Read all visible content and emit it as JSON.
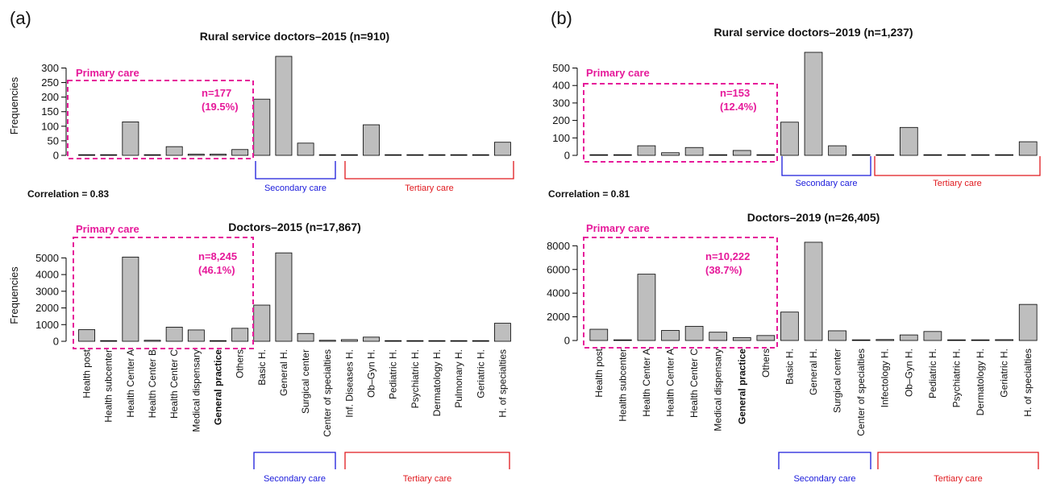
{
  "panels": {
    "a": {
      "label": "(a)",
      "correlation": "Correlation = 0.83"
    },
    "b": {
      "label": "(b)",
      "correlation": "Correlation = 0.81"
    }
  },
  "colors": {
    "bar": "#bebebe",
    "primary": "#e6199a",
    "secondary": "#1a1adb",
    "tertiary": "#e0191e"
  },
  "chart_data": [
    {
      "type": "bar",
      "panel": "a",
      "title": "Rural service doctors–2015 (n=910)",
      "ylabel": "Frequencies",
      "categories": [
        "Health post",
        "Health subcenter",
        "Health Center A",
        "Health Center B",
        "Health Center C",
        "Medical dispensary",
        "General practice",
        "Others",
        "Basic H.",
        "General H.",
        "Surgical center",
        "Center of specialties",
        "Inf. Diseases H.",
        "Ob–Gyn H.",
        "Pediatric H.",
        "Psychiatric H.",
        "Dermatology H.",
        "Pulmonary H.",
        "Geriatric H.",
        "H. of specialties"
      ],
      "values": [
        0,
        1,
        115,
        0,
        30,
        4,
        4,
        20,
        193,
        340,
        42,
        0,
        2,
        105,
        0,
        0,
        0,
        0,
        0,
        45
      ],
      "ylim": [
        0,
        340
      ],
      "yticks": [
        0,
        50,
        100,
        150,
        200,
        250,
        300
      ],
      "primary_care": {
        "label": "Primary care",
        "n": "n=177",
        "pct": "(19.5%)"
      },
      "secondary_label": "Secondary care",
      "tertiary_label": "Tertiary care"
    },
    {
      "type": "bar",
      "panel": "a",
      "title": "Doctors–2015 (n=17,867)",
      "ylabel": "Frequencies",
      "categories": [
        "Health post",
        "Health subcenter",
        "Health Center A",
        "Health Center B",
        "Health Center C",
        "Medical dispensary",
        "General practice",
        "Others",
        "Basic H.",
        "General H.",
        "Surgical center",
        "Center of specialties",
        "Inf. Diseases H.",
        "Ob–Gyn H.",
        "Pediatric H.",
        "Psychiatric H.",
        "Dermatology H.",
        "Pulmonary H.",
        "Geriatric H.",
        "H. of specialties"
      ],
      "values": [
        700,
        20,
        5050,
        60,
        850,
        680,
        20,
        780,
        2170,
        5300,
        470,
        60,
        100,
        250,
        15,
        5,
        15,
        30,
        10,
        1080
      ],
      "ylim": [
        0,
        5500
      ],
      "yticks": [
        0,
        1000,
        2000,
        3000,
        4000,
        5000
      ],
      "primary_care": {
        "label": "Primary care",
        "n": "n=8,245",
        "pct": "(46.1%)"
      },
      "secondary_label": "Secondary care",
      "tertiary_label": "Tertiary care"
    },
    {
      "type": "bar",
      "panel": "b",
      "title": "Rural service doctors–2019 (n=1,237)",
      "ylabel": "",
      "categories": [
        "Health post",
        "Health subcenter",
        "Health Center A",
        "Health Center A",
        "Health Center C",
        "Medical dispensary",
        "General practice",
        "Others",
        "Basic H.",
        "General H.",
        "Surgical center",
        "Center of specialties",
        "Infectology H.",
        "Ob–Gyn H.",
        "Pediatric H.",
        "Psychiatric H.",
        "Dermatology H.",
        "Geriatric H.",
        "H. of specialties"
      ],
      "values": [
        2,
        0,
        55,
        15,
        45,
        0,
        28,
        2,
        190,
        590,
        55,
        0,
        2,
        160,
        2,
        0,
        0,
        0,
        78
      ],
      "ylim": [
        0,
        590
      ],
      "yticks": [
        0,
        100,
        200,
        300,
        400,
        500
      ],
      "primary_care": {
        "label": "Primary care",
        "n": "n=153",
        "pct": "(12.4%)"
      },
      "secondary_label": "Secondary care",
      "tertiary_label": "Tertiary care"
    },
    {
      "type": "bar",
      "panel": "b",
      "title": "Doctors–2019 (n=26,405)",
      "ylabel": "",
      "categories": [
        "Health post",
        "Health subcenter",
        "Health Center A",
        "Health Center A",
        "Health Center C",
        "Medical dispensary",
        "General practice",
        "Others",
        "Basic H.",
        "General H.",
        "Surgical center",
        "Center of specialties",
        "Infectology H.",
        "Ob–Gyn H.",
        "Pediatric H.",
        "Psychiatric H.",
        "Dermatology H.",
        "Geriatric H.",
        "H. of specialties"
      ],
      "values": [
        950,
        50,
        5600,
        850,
        1200,
        700,
        250,
        420,
        2400,
        8300,
        820,
        10,
        80,
        470,
        760,
        15,
        20,
        70,
        3050
      ],
      "ylim": [
        0,
        8500
      ],
      "yticks": [
        0,
        2000,
        4000,
        6000,
        8000
      ],
      "primary_care": {
        "label": "Primary care",
        "n": "n=10,222",
        "pct": "(38.7%)"
      },
      "secondary_label": "Secondary care",
      "tertiary_label": "Tertiary care"
    }
  ]
}
